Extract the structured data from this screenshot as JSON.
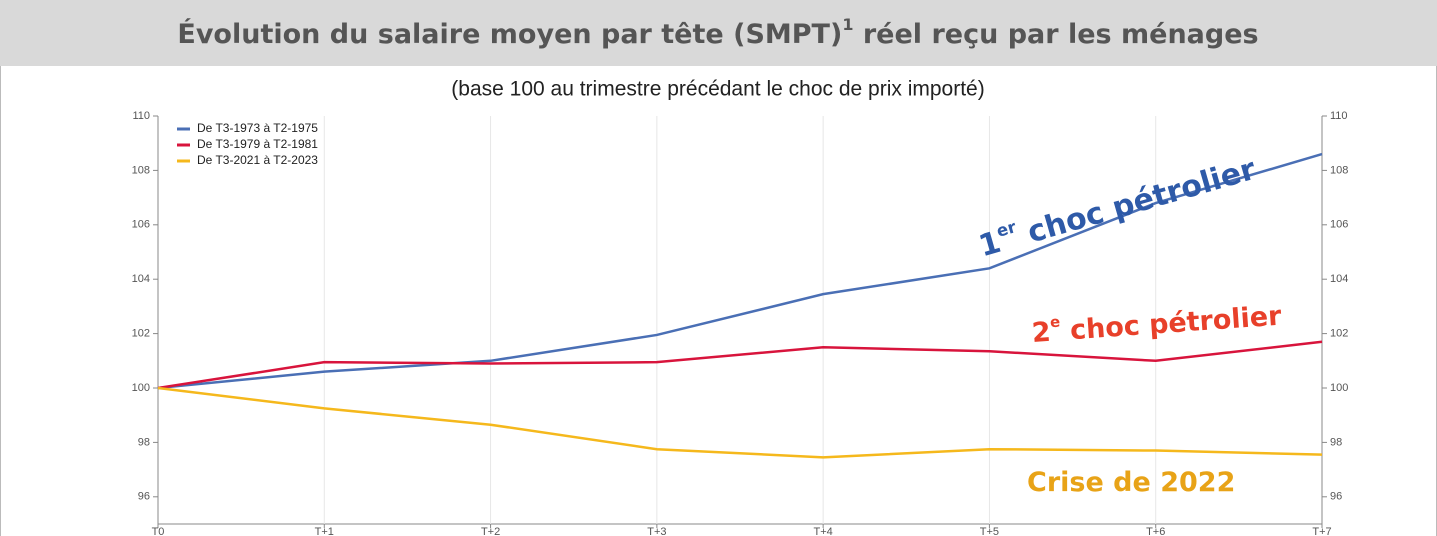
{
  "chart_data": {
    "type": "line",
    "title": "Évolution du salaire moyen par tête (SMPT)",
    "title_note_ref": "1",
    "title_end": " réel reçu par les ménages",
    "subtitle": "(base 100 au trimestre précédant le choc de prix importé)",
    "categories": [
      "T0",
      "T+1",
      "T+2",
      "T+3",
      "T+4",
      "T+5",
      "T+6",
      "T+7"
    ],
    "series": [
      {
        "name": "De T3-1973 à T2-1975",
        "color": "#4a6fb5",
        "values": [
          100,
          100.6,
          101.0,
          101.95,
          103.45,
          104.4,
          106.8,
          108.6
        ]
      },
      {
        "name": "De T3-1979 à T2-1981",
        "color": "#d8143c",
        "values": [
          100,
          100.95,
          100.9,
          100.95,
          101.5,
          101.35,
          101.0,
          101.7
        ]
      },
      {
        "name": "De T3-2021 à T2-2023",
        "color": "#f5b81c",
        "values": [
          100,
          99.25,
          98.65,
          97.75,
          97.45,
          97.75,
          97.7,
          97.55
        ]
      }
    ],
    "ylim": [
      95,
      110
    ],
    "yticks": [
      96,
      98,
      100,
      102,
      104,
      106,
      108,
      110
    ],
    "grid": true,
    "legend": "top-left",
    "annotations": [
      {
        "text": "1",
        "sup": "er",
        "rest": " choc pétrolier",
        "color": "#2e5aa8"
      },
      {
        "text": "2",
        "sup": "e",
        "rest": " choc pétrolier",
        "color": "#e8402a"
      },
      {
        "text": "Crise de 2022",
        "color": "#e8a317"
      }
    ]
  }
}
